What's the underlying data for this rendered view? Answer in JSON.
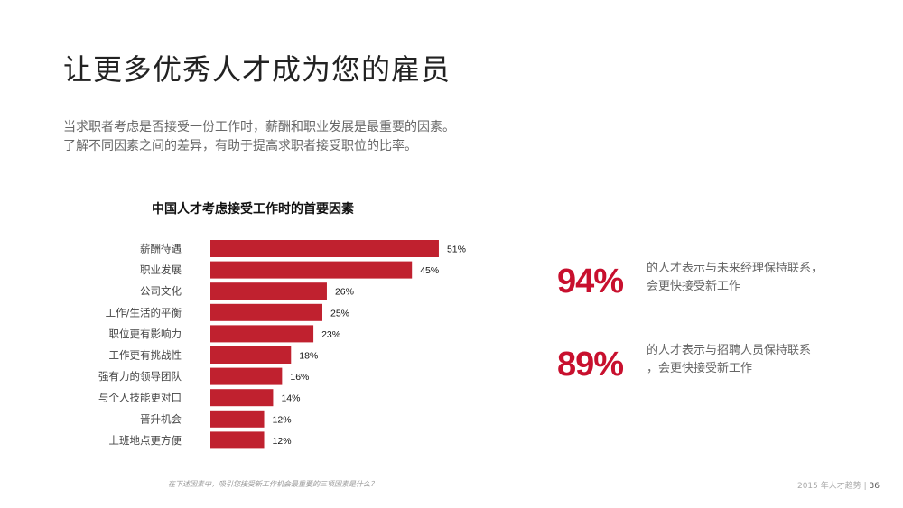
{
  "header": {
    "title": "让更多优秀人才成为您的雇员"
  },
  "intro": {
    "line1": "当求职者考虑是否接受一份工作时，薪酬和职业发展是最重要的因素。",
    "line2": "了解不同因素之间的差异，有助于提高求职者接受职位的比率。"
  },
  "chart_data": {
    "type": "bar",
    "orientation": "horizontal",
    "title": "中国人才考虑接受工作时的首要因素",
    "categories": [
      "薪酬待遇",
      "职业发展",
      "公司文化",
      "工作/生活的平衡",
      "职位更有影响力",
      "工作更有挑战性",
      "强有力的领导团队",
      "与个人技能更对口",
      "晋升机会",
      "上班地点更方便"
    ],
    "values": [
      51,
      45,
      26,
      25,
      23,
      18,
      16,
      14,
      12,
      12
    ],
    "value_labels": [
      "51%",
      "45%",
      "26%",
      "25%",
      "23%",
      "18%",
      "16%",
      "14%",
      "12%",
      "12%"
    ],
    "bar_color": "#c0212f",
    "grid": false,
    "legend": "none"
  },
  "stats": [
    {
      "number": "94%",
      "line1": "的人才表示与未来经理保持联系，",
      "line2": "会更快接受新工作"
    },
    {
      "number": "89%",
      "line1": "的人才表示与招聘人员保持联系",
      "line2": "，会更快接受新工作"
    }
  ],
  "footnote": "在下述因素中，吸引您接受新工作机会最重要的三项因素是什么？",
  "footer": {
    "text": "2015 年人才趋势",
    "separator": "|",
    "page": "36"
  },
  "colors": {
    "accent": "#c8102e",
    "bar": "#c0212f"
  }
}
